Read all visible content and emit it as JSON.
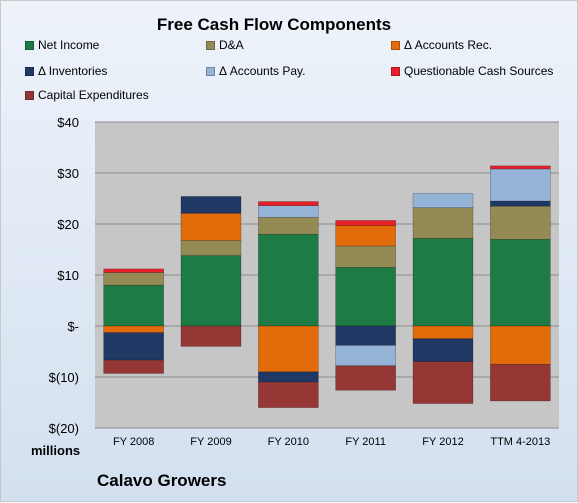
{
  "chart_data": {
    "type": "bar",
    "stacked": true,
    "title": "Free Cash Flow Components",
    "company": "Calavo Growers",
    "units_label": "millions",
    "categories": [
      "FY 2008",
      "FY 2009",
      "FY 2010",
      "FY 2011",
      "FY 2012",
      "TTM 4-2013"
    ],
    "ylim": [
      -20,
      40
    ],
    "yticks": [
      -20,
      -10,
      0,
      10,
      20,
      30,
      40
    ],
    "ytick_labels": [
      "$(20)",
      "$(10)",
      "$-",
      "$10",
      "$20",
      "$30",
      "$40"
    ],
    "grid": true,
    "legend_position": "top",
    "series": [
      {
        "name": "Net Income",
        "color": "#1e7b45",
        "values": [
          8.0,
          13.8,
          18.0,
          11.5,
          17.2,
          17.0
        ]
      },
      {
        "name": "D&A",
        "color": "#948a54",
        "values": [
          2.5,
          3.0,
          3.3,
          4.2,
          6.0,
          6.5
        ]
      },
      {
        "name": "Δ Accounts Rec.",
        "color": "#e36c0a",
        "values": [
          -1.3,
          5.3,
          -9.0,
          4.0,
          -2.5,
          -7.5
        ]
      },
      {
        "name": "Δ Inventories",
        "color": "#1f3864",
        "values": [
          -5.4,
          3.3,
          -2.0,
          -3.8,
          -4.5,
          1.0
        ]
      },
      {
        "name": "Δ Accounts Pay.",
        "color": "#95b3d7",
        "values": [
          0.0,
          0.0,
          2.3,
          -4.0,
          2.8,
          6.3
        ]
      },
      {
        "name": "Questionable Cash Sources",
        "color": "#e8202a",
        "values": [
          0.7,
          0.0,
          0.8,
          1.0,
          0.0,
          0.6
        ]
      },
      {
        "name": "Capital Expenditures",
        "color": "#953735",
        "values": [
          -2.6,
          -4.0,
          -5.0,
          -4.8,
          -8.2,
          -7.2
        ]
      }
    ]
  }
}
